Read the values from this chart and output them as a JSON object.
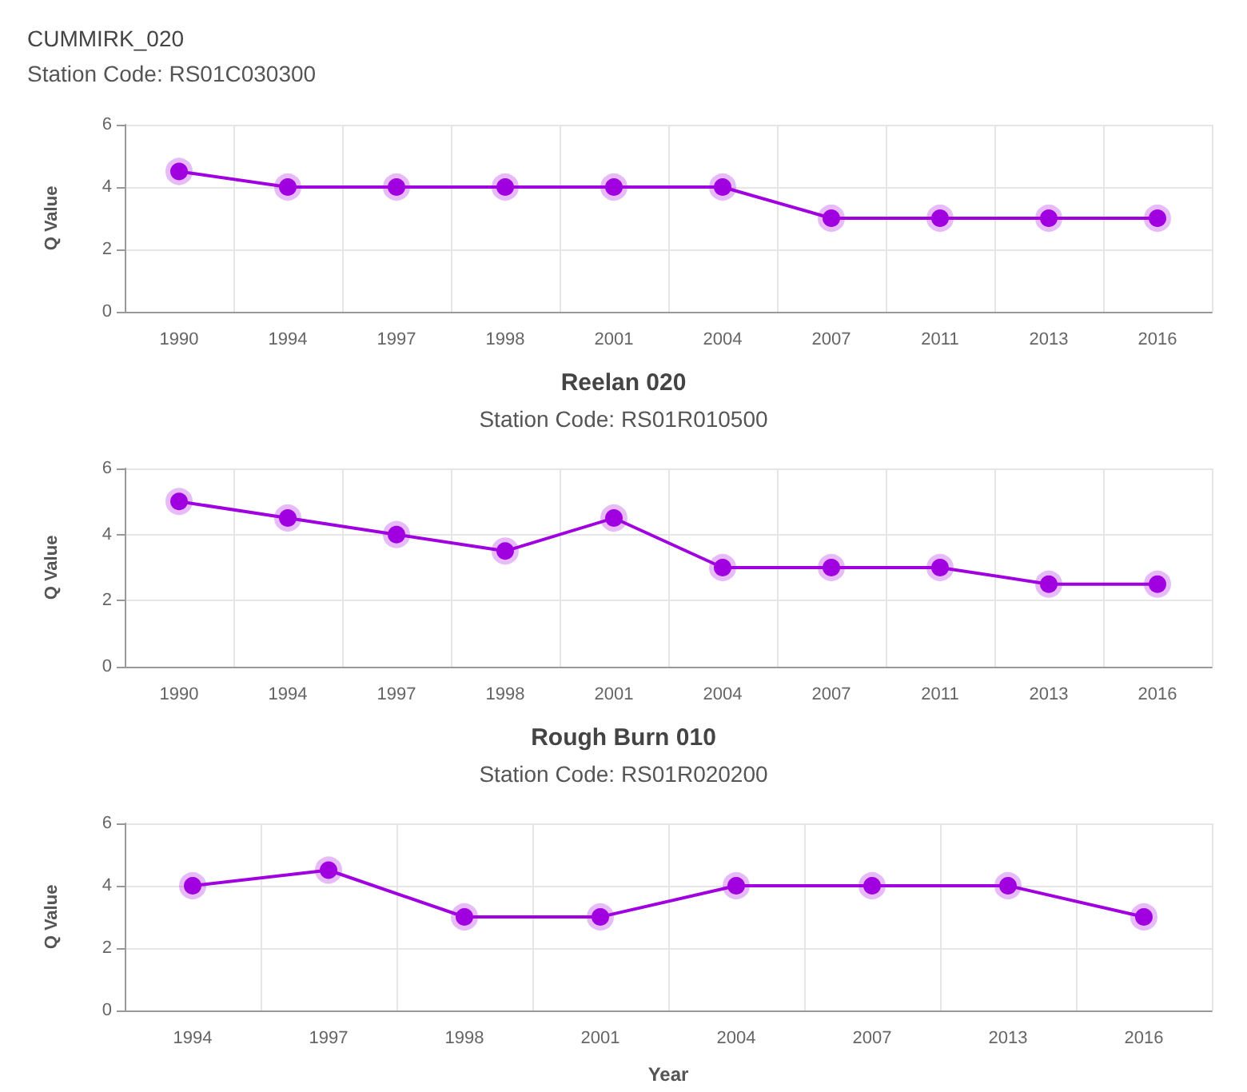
{
  "chart_data": [
    {
      "type": "line",
      "title": "CUMMIRK_020",
      "subtitle": "Station Code: RS01C030300",
      "ylabel": "Q Value",
      "categories": [
        "1990",
        "1994",
        "1997",
        "1998",
        "2001",
        "2004",
        "2007",
        "2011",
        "2013",
        "2016"
      ],
      "series": [
        {
          "color": "#a000e0",
          "values": [
            4.5,
            4,
            4,
            4,
            4,
            4,
            3,
            3,
            3,
            3
          ]
        }
      ],
      "ylim": [
        0,
        6
      ],
      "yticks": [
        0,
        2,
        4,
        6
      ],
      "grid": true,
      "marker": "circle",
      "line_style": "solid"
    },
    {
      "type": "line",
      "title": "Reelan 020",
      "subtitle": "Station Code: RS01R010500",
      "ylabel": "Q Value",
      "categories": [
        "1990",
        "1994",
        "1997",
        "1998",
        "2001",
        "2004",
        "2007",
        "2011",
        "2013",
        "2016"
      ],
      "series": [
        {
          "color": "#a000e0",
          "values": [
            5,
            4.5,
            4,
            3.5,
            4.5,
            3,
            3,
            3,
            2.5,
            2.5
          ]
        }
      ],
      "ylim": [
        0,
        6
      ],
      "yticks": [
        0,
        2,
        4,
        6
      ],
      "grid": true,
      "marker": "circle",
      "line_style": "solid"
    },
    {
      "type": "line",
      "title": "Rough Burn 010",
      "subtitle": "Station Code: RS01R020200",
      "xlabel": "Year",
      "ylabel": "Q Value",
      "categories": [
        "1994",
        "1997",
        "1998",
        "2001",
        "2004",
        "2007",
        "2013",
        "2016"
      ],
      "series": [
        {
          "color": "#a000e0",
          "values": [
            4,
            4.5,
            3,
            3,
            4,
            4,
            4,
            3
          ]
        }
      ],
      "ylim": [
        0,
        6
      ],
      "yticks": [
        0,
        2,
        4,
        6
      ],
      "grid": true,
      "marker": "circle",
      "line_style": "solid"
    }
  ]
}
